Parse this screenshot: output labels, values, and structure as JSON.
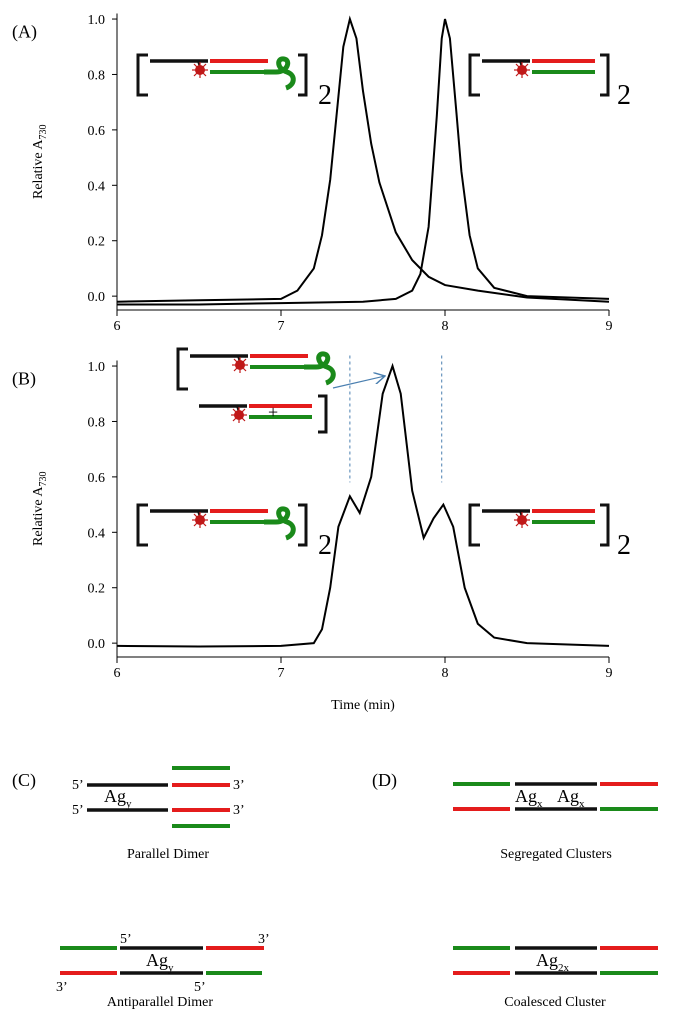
{
  "chart_data": [
    {
      "type": "line",
      "panel_label": "(A)",
      "y_label": "Relative A",
      "y_label_subscript": "730",
      "xlim": [
        6,
        9
      ],
      "xticks": [
        6,
        7,
        8,
        9
      ],
      "ylim": [
        -0.05,
        1.02
      ],
      "yticks": [
        {
          "value": 0,
          "label": "0.0"
        },
        0.2,
        0.4,
        0.6,
        0.8,
        {
          "value": 1,
          "label": "1.0"
        }
      ],
      "series": [
        {
          "color": "#000000",
          "x": [
            6,
            6.5,
            7,
            7.1,
            7.2,
            7.25,
            7.3,
            7.35,
            7.38,
            7.42,
            7.46,
            7.5,
            7.55,
            7.6,
            7.7,
            7.8,
            7.9,
            8,
            8.2,
            8.5,
            9
          ],
          "values": [
            -0.02,
            -0.015,
            -0.01,
            0.02,
            0.1,
            0.22,
            0.42,
            0.72,
            0.9,
            1.0,
            0.93,
            0.74,
            0.55,
            0.41,
            0.23,
            0.13,
            0.07,
            0.04,
            0.02,
            -0.005,
            -0.02
          ]
        },
        {
          "color": "#000000",
          "x": [
            6,
            6.5,
            7,
            7.5,
            7.7,
            7.8,
            7.85,
            7.9,
            7.95,
            7.98,
            8,
            8.03,
            8.07,
            8.1,
            8.15,
            8.2,
            8.3,
            8.5,
            9
          ],
          "values": [
            -0.03,
            -0.03,
            -0.025,
            -0.02,
            -0.01,
            0.02,
            0.08,
            0.25,
            0.65,
            0.93,
            1.0,
            0.93,
            0.66,
            0.45,
            0.22,
            0.1,
            0.03,
            0.0,
            -0.01
          ]
        }
      ],
      "annotations": [
        "2",
        "2"
      ]
    },
    {
      "type": "line",
      "panel_label": "(B)",
      "y_label": "Relative A",
      "y_label_subscript": "730",
      "x_label": "Time (min)",
      "xlim": [
        6,
        9
      ],
      "xticks": [
        6,
        7,
        8,
        9
      ],
      "ylim": [
        -0.05,
        1.02
      ],
      "yticks": [
        {
          "value": 0,
          "label": "0.0"
        },
        0.2,
        0.4,
        0.6,
        0.8,
        {
          "value": 1,
          "label": "1.0"
        }
      ],
      "series": [
        {
          "color": "#000000",
          "x": [
            6,
            6.5,
            7,
            7.2,
            7.25,
            7.3,
            7.35,
            7.42,
            7.48,
            7.55,
            7.62,
            7.68,
            7.73,
            7.8,
            7.87,
            7.93,
            7.99,
            8.05,
            8.12,
            8.2,
            8.3,
            8.5,
            9
          ],
          "values": [
            -0.01,
            -0.012,
            -0.01,
            0.0,
            0.05,
            0.2,
            0.42,
            0.53,
            0.47,
            0.6,
            0.9,
            1.0,
            0.9,
            0.55,
            0.38,
            0.45,
            0.5,
            0.42,
            0.2,
            0.07,
            0.02,
            0.0,
            -0.01
          ]
        }
      ],
      "reference_lines": [
        7.42,
        7.98
      ],
      "reference_color": "#4a7fb0",
      "annotations": [
        "+",
        "2",
        "2"
      ]
    }
  ],
  "panels": [
    {
      "label": "(C)",
      "diagrams": [
        {
          "caption": "Parallel Dimer",
          "ends": [
            "5’",
            "3’",
            "5’",
            "3’"
          ],
          "cluster": "Ag",
          "cluster_subscript": "y"
        },
        {
          "caption": "Antiparallel Dimer",
          "ends": [
            "5’",
            "3’",
            "3’",
            "5’"
          ],
          "cluster": "Ag",
          "cluster_subscript": "y"
        }
      ]
    },
    {
      "label": "(D)",
      "diagrams": [
        {
          "caption": "Segregated Clusters",
          "cluster": "Ag",
          "cluster_subscript": "x",
          "cluster2": "Ag",
          "cluster2_subscript": "x"
        },
        {
          "caption": "Coalesced Cluster",
          "cluster": "Ag",
          "cluster_subscript": "2x"
        }
      ]
    }
  ]
}
